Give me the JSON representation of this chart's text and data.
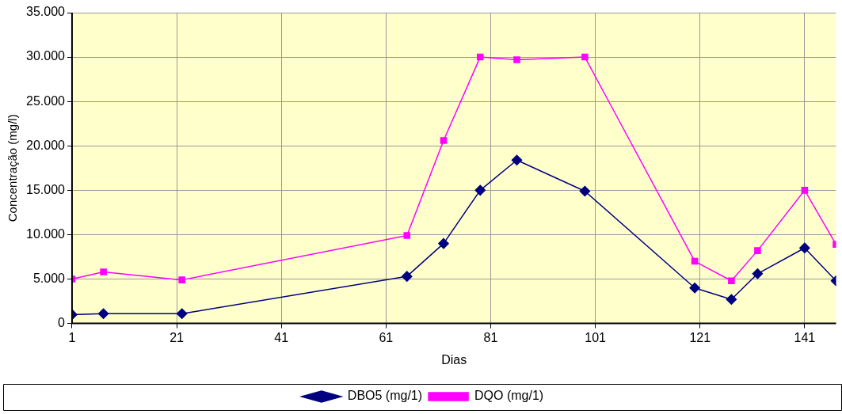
{
  "chart_data": {
    "type": "line",
    "xlabel": "Dias",
    "ylabel": "Concentração (mg/l)",
    "xlim": [
      1,
      147
    ],
    "xticks": [
      1,
      21,
      41,
      61,
      81,
      101,
      121,
      141
    ],
    "ylim": [
      0,
      35000
    ],
    "yticks": [
      {
        "value": 0,
        "label": "0"
      },
      {
        "value": 5000,
        "label": "5.000"
      },
      {
        "value": 10000,
        "label": "10.000"
      },
      {
        "value": 15000,
        "label": "15.000"
      },
      {
        "value": 20000,
        "label": "20.000"
      },
      {
        "value": 25000,
        "label": "25.000"
      },
      {
        "value": 30000,
        "label": "30.000"
      },
      {
        "value": 35000,
        "label": "35.000"
      }
    ],
    "grid": true,
    "legend": "bottom",
    "line_style": "solid",
    "series": [
      {
        "name": "DBO5 (mg/1)",
        "color": "#000080",
        "marker": "diamond",
        "x": [
          1,
          7,
          22,
          65,
          72,
          79,
          86,
          99,
          120,
          127,
          132,
          141,
          147
        ],
        "values": [
          1000,
          1100,
          1100,
          5300,
          9000,
          15000,
          18400,
          14900,
          4000,
          2700,
          5600,
          8500,
          4800
        ]
      },
      {
        "name": "DQO (mg/1)",
        "color": "#ff00ff",
        "marker": "square",
        "x": [
          1,
          7,
          22,
          65,
          72,
          79,
          86,
          99,
          120,
          127,
          132,
          141,
          147
        ],
        "values": [
          5000,
          5800,
          4900,
          9900,
          20600,
          30000,
          29700,
          30000,
          7000,
          4800,
          8200,
          15000,
          8900
        ]
      }
    ]
  }
}
